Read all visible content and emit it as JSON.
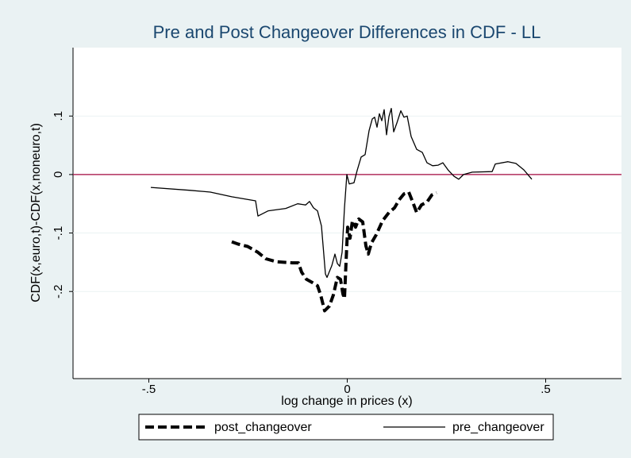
{
  "chart_data": {
    "type": "line",
    "title": "Pre and Post Changeover Differences in CDF - LL",
    "x_label": "log change in prices (x)",
    "y_label": "CDF(x,euro,t)-CDF(x,noneuro,t)",
    "xlim": [
      -0.691,
      0.691
    ],
    "ylim": [
      -0.349,
      0.217
    ],
    "xticks": [
      {
        "value": -0.5,
        "label": "-.5"
      },
      0,
      {
        "value": 0.5,
        "label": ".5"
      }
    ],
    "yticks": [
      {
        "value": -0.2,
        "label": "-.2"
      },
      {
        "value": -0.1,
        "label": "-.1"
      },
      0,
      {
        "value": 0.1,
        "label": ".1"
      }
    ],
    "grid": true,
    "reference_line": {
      "y": 0,
      "color": "#a3063e"
    },
    "legend": "bottom",
    "series": [
      {
        "name": "post_changeover",
        "color": "#000000",
        "style": "dashed",
        "x": [
          -0.291,
          -0.275,
          -0.251,
          -0.225,
          -0.205,
          -0.179,
          -0.139,
          -0.123,
          -0.115,
          -0.103,
          -0.087,
          -0.075,
          -0.067,
          -0.057,
          -0.045,
          -0.035,
          -0.025,
          -0.017,
          -0.011,
          -0.007,
          -0.003,
          0.001,
          0.007,
          0.013,
          0.021,
          0.029,
          0.039,
          0.047,
          0.053,
          0.061,
          0.073,
          0.089,
          0.105,
          0.119,
          0.131,
          0.143,
          0.155,
          0.165,
          0.175,
          0.187,
          0.201,
          0.213,
          0.225
        ],
        "values": [
          -0.115,
          -0.119,
          -0.123,
          -0.133,
          -0.144,
          -0.149,
          -0.151,
          -0.151,
          -0.167,
          -0.179,
          -0.185,
          -0.19,
          -0.206,
          -0.233,
          -0.225,
          -0.206,
          -0.176,
          -0.179,
          -0.204,
          -0.212,
          -0.149,
          -0.09,
          -0.109,
          -0.079,
          -0.09,
          -0.076,
          -0.081,
          -0.122,
          -0.136,
          -0.117,
          -0.103,
          -0.079,
          -0.065,
          -0.057,
          -0.043,
          -0.033,
          -0.03,
          -0.047,
          -0.065,
          -0.052,
          -0.047,
          -0.035,
          -0.031
        ]
      },
      {
        "name": "pre_changeover",
        "color": "#000000",
        "style": "solid",
        "x": [
          -0.495,
          -0.395,
          -0.345,
          -0.291,
          -0.231,
          -0.225,
          -0.199,
          -0.155,
          -0.125,
          -0.105,
          -0.095,
          -0.085,
          -0.075,
          -0.065,
          -0.055,
          -0.051,
          -0.039,
          -0.031,
          -0.025,
          -0.019,
          -0.013,
          -0.007,
          -0.001,
          0.005,
          0.017,
          0.025,
          0.035,
          0.045,
          0.055,
          0.063,
          0.069,
          0.075,
          0.081,
          0.087,
          0.093,
          0.099,
          0.105,
          0.111,
          0.117,
          0.125,
          0.135,
          0.143,
          0.151,
          0.161,
          0.175,
          0.189,
          0.201,
          0.215,
          0.229,
          0.241,
          0.255,
          0.269,
          0.281,
          0.293,
          0.315,
          0.365,
          0.373,
          0.405,
          0.425,
          0.445,
          0.465
        ],
        "values": [
          -0.022,
          -0.027,
          -0.03,
          -0.038,
          -0.045,
          -0.071,
          -0.062,
          -0.058,
          -0.05,
          -0.052,
          -0.046,
          -0.057,
          -0.062,
          -0.088,
          -0.17,
          -0.176,
          -0.156,
          -0.136,
          -0.152,
          -0.157,
          -0.133,
          -0.057,
          0.0,
          -0.016,
          -0.014,
          0.007,
          0.03,
          0.034,
          0.075,
          0.095,
          0.098,
          0.081,
          0.104,
          0.092,
          0.111,
          0.068,
          0.099,
          0.113,
          0.073,
          0.088,
          0.109,
          0.098,
          0.1,
          0.065,
          0.043,
          0.038,
          0.02,
          0.015,
          0.016,
          0.02,
          0.007,
          -0.003,
          -0.008,
          0.0,
          0.004,
          0.005,
          0.018,
          0.022,
          0.019,
          0.008,
          -0.008
        ]
      }
    ]
  }
}
